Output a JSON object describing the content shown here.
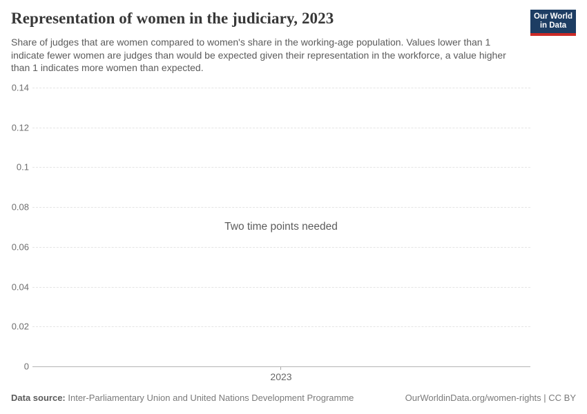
{
  "header": {
    "title": "Representation of women in the judiciary, 2023",
    "subtitle": "Share of judges that are women compared to women's share in the working-age population. Values lower than 1 indicate fewer women are judges than would be expected given their representation in the workforce, a value higher than 1 indicates more women than expected.",
    "logo": {
      "line1": "Our World",
      "line2": "in Data",
      "bg_color": "#1d3d63",
      "accent_color": "#cc2a26"
    }
  },
  "chart_data": {
    "type": "line",
    "title": "Representation of women in the judiciary, 2023",
    "series": [],
    "x_ticks": [
      "2023"
    ],
    "y_ticks": [
      "0.14",
      "0.12",
      "0.1",
      "0.08",
      "0.06",
      "0.04",
      "0.02",
      "0"
    ],
    "ylim": [
      0,
      0.14
    ],
    "grid": "horizontal-dashed",
    "legend": "none",
    "empty_state_message": "Two time points needed"
  },
  "footer": {
    "data_source_label": "Data source:",
    "data_source_value": "Inter-Parliamentary Union and United Nations Development Programme",
    "citation": "OurWorldinData.org/women-rights | CC BY"
  }
}
